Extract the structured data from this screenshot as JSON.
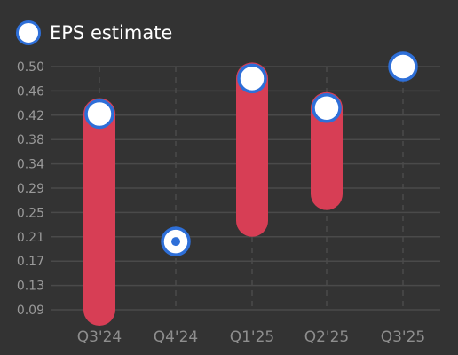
{
  "chart_data": {
    "type": "range-bar",
    "categories": [
      "Q3'24",
      "Q4'24",
      "Q1'25",
      "Q2'25",
      "Q3'25"
    ],
    "y_ticks": [
      "0.09",
      "0.13",
      "0.17",
      "0.21",
      "0.25",
      "0.29",
      "0.34",
      "0.38",
      "0.42",
      "0.46",
      "0.50"
    ],
    "ylim": [
      0.07,
      0.52
    ],
    "series": [
      {
        "name": "EPS estimate",
        "values": [
          0.42,
          0.205,
          0.48,
          0.43,
          0.5
        ]
      }
    ],
    "ranges": [
      {
        "low": 0.09,
        "high": 0.42
      },
      null,
      {
        "low": 0.24,
        "high": 0.48
      },
      {
        "low": 0.285,
        "high": 0.43
      },
      null
    ],
    "grid": true,
    "legend_position": "top-left",
    "colors": {
      "background": "#333333",
      "range_bar": "#d73e55",
      "marker_border": "#2e6fd8",
      "marker_fill": "#ffffff",
      "grid": "#4a4a4a"
    }
  }
}
